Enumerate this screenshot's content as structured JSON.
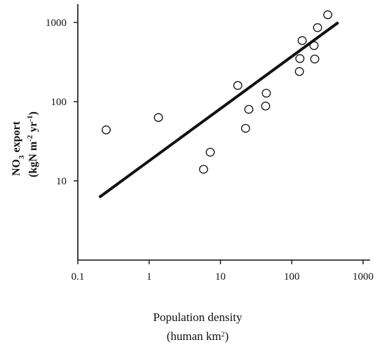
{
  "chart_data": {
    "type": "scatter",
    "xscale": "log",
    "yscale": "log",
    "xlim": [
      0.1,
      1000
    ],
    "ylim": [
      1,
      5000
    ],
    "xticks": [
      "0.1",
      "1",
      "10",
      "100",
      "1000"
    ],
    "yticks": [
      "10",
      "100",
      "1000"
    ],
    "xlabel": {
      "line1": "Population density",
      "line2_base": "(human km",
      "line2_sup": "2",
      "line2_end": ")"
    },
    "ylabel": {
      "line1_a": "NO",
      "line1_sub": "3",
      "line1_b": " export",
      "line2_a": "(kgN m",
      "line2_sup1": "-2",
      "line2_b": " yr",
      "line2_sup2": "-1",
      "line2_c": ")"
    },
    "series": [
      {
        "points": [
          {
            "x": 0.25,
            "y": 44
          },
          {
            "x": 1.35,
            "y": 63
          },
          {
            "x": 5.8,
            "y": 14
          },
          {
            "x": 7.2,
            "y": 23
          },
          {
            "x": 17.5,
            "y": 160
          },
          {
            "x": 22.5,
            "y": 46
          },
          {
            "x": 25,
            "y": 80
          },
          {
            "x": 43,
            "y": 88
          },
          {
            "x": 44,
            "y": 128
          },
          {
            "x": 128,
            "y": 240
          },
          {
            "x": 130,
            "y": 350
          },
          {
            "x": 140,
            "y": 590
          },
          {
            "x": 205,
            "y": 510
          },
          {
            "x": 210,
            "y": 345
          },
          {
            "x": 230,
            "y": 860
          },
          {
            "x": 320,
            "y": 1250
          }
        ]
      }
    ],
    "regression_line": {
      "x": [
        0.2,
        450
      ],
      "y": [
        6.2,
        1000
      ]
    }
  }
}
